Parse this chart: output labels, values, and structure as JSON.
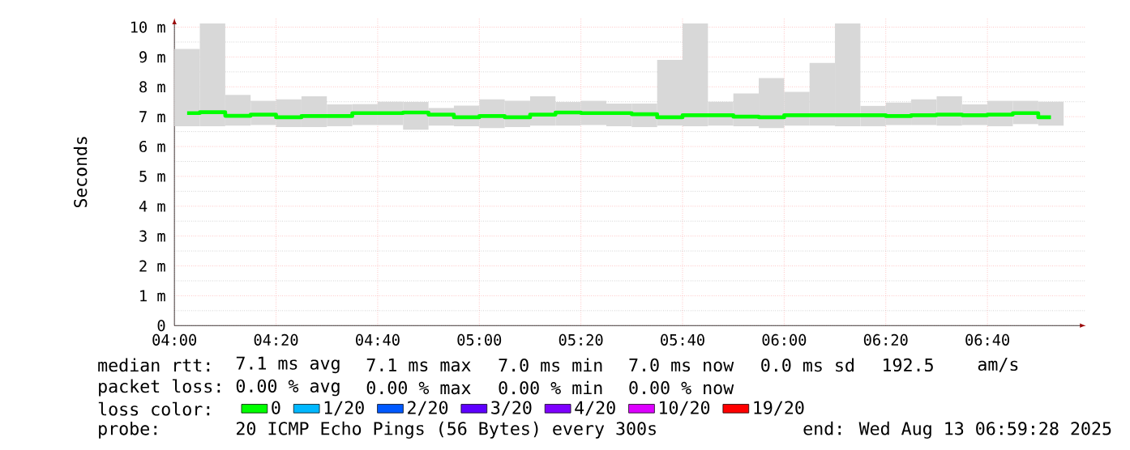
{
  "chart_data": {
    "type": "bar",
    "ylabel": "Seconds",
    "legend_title": "loss color:",
    "legend": "bottom",
    "grid": true,
    "xlim": [
      4,
      6.99
    ],
    "xticks": [
      {
        "value": 4,
        "label": "04:00"
      },
      {
        "value": 4.3333,
        "label": "04:20"
      },
      {
        "value": 4.6667,
        "label": "04:40"
      },
      {
        "value": 5,
        "label": "05:00"
      },
      {
        "value": 5.3333,
        "label": "05:20"
      },
      {
        "value": 5.6667,
        "label": "05:40"
      },
      {
        "value": 6,
        "label": "06:00"
      },
      {
        "value": 6.3333,
        "label": "06:20"
      },
      {
        "value": 6.6667,
        "label": "06:40"
      }
    ],
    "ylim": [
      0,
      10.3
    ],
    "yticks": [
      0,
      {
        "value": 1,
        "label": "1 m"
      },
      {
        "value": 2,
        "label": "2 m"
      },
      {
        "value": 3,
        "label": "3 m"
      },
      {
        "value": 4,
        "label": "4 m"
      },
      {
        "value": 5,
        "label": "5 m"
      },
      {
        "value": 6,
        "label": "6 m"
      },
      {
        "value": 7,
        "label": "7 m"
      },
      {
        "value": 8,
        "label": "8 m"
      },
      {
        "value": 9,
        "label": "9 m"
      },
      {
        "value": 10,
        "label": "10 m"
      }
    ],
    "x": [
      4.0417,
      4.125,
      4.2083,
      4.2917,
      4.375,
      4.4583,
      4.5417,
      4.625,
      4.7083,
      4.7917,
      4.875,
      4.9583,
      5.0417,
      5.125,
      5.2083,
      5.2917,
      5.375,
      5.4583,
      5.5417,
      5.625,
      5.7083,
      5.7917,
      5.875,
      5.9583,
      6.0417,
      6.125,
      6.2083,
      6.2917,
      6.375,
      6.4583,
      6.5417,
      6.625,
      6.7083,
      6.7917,
      6.875
    ],
    "series": [
      {
        "color": "#d8d8d8",
        "base": [
          6.68,
          6.68,
          6.7,
          6.72,
          6.65,
          6.65,
          6.68,
          6.72,
          6.72,
          6.56,
          6.7,
          6.68,
          6.62,
          6.65,
          6.7,
          6.7,
          6.72,
          6.68,
          6.65,
          6.7,
          6.68,
          6.7,
          6.68,
          6.62,
          6.7,
          6.7,
          6.68,
          6.68,
          6.72,
          6.72,
          6.7,
          6.72,
          6.68,
          6.75,
          6.7
        ],
        "values": [
          2.59,
          3.44,
          1.03,
          0.81,
          0.93,
          1.03,
          0.73,
          0.7,
          0.78,
          0.93,
          0.59,
          0.69,
          0.96,
          0.88,
          0.98,
          0.79,
          0.81,
          0.76,
          0.79,
          2.2,
          3.44,
          0.8,
          1.1,
          1.67,
          1.13,
          2.1,
          3.44,
          0.68,
          0.75,
          0.86,
          0.98,
          0.69,
          0.85,
          0.78,
          0.8
        ]
      },
      {
        "type": "step",
        "name": "0",
        "color": "#00ff00",
        "values": [
          7.12,
          7.15,
          7.03,
          7.07,
          6.98,
          7.02,
          7.02,
          7.12,
          7.12,
          7.14,
          7.07,
          6.98,
          7.02,
          6.98,
          7.07,
          7.14,
          7.12,
          7.12,
          7.08,
          6.98,
          7.05,
          7.05,
          7.0,
          6.98,
          7.05,
          7.05,
          7.05,
          7.05,
          7.02,
          7.05,
          7.07,
          7.05,
          7.07,
          7.12,
          6.98
        ]
      },
      {
        "type": "step",
        "name": "1/20",
        "color": "#00b8ff",
        "values": [
          null,
          null,
          null,
          null,
          null,
          null,
          null,
          null,
          null,
          null,
          null,
          null,
          null,
          null,
          null,
          null,
          null,
          null,
          null,
          null,
          null,
          null,
          null,
          null,
          null,
          null,
          null,
          null,
          null,
          null,
          null,
          null,
          null,
          null,
          null
        ]
      },
      {
        "type": "step",
        "name": "2/20",
        "color": "#0059ff",
        "values": [
          null,
          null,
          null,
          null,
          null,
          null,
          null,
          null,
          null,
          null,
          null,
          null,
          null,
          null,
          null,
          null,
          null,
          null,
          null,
          null,
          null,
          null,
          null,
          null,
          null,
          null,
          null,
          null,
          null,
          null,
          null,
          null,
          null,
          null,
          null
        ]
      },
      {
        "type": "step",
        "name": "3/20",
        "color": "#5e00ff",
        "values": [
          null,
          null,
          null,
          null,
          null,
          null,
          null,
          null,
          null,
          null,
          null,
          null,
          null,
          null,
          null,
          null,
          null,
          null,
          null,
          null,
          null,
          null,
          null,
          null,
          null,
          null,
          null,
          null,
          null,
          null,
          null,
          null,
          null,
          null,
          null
        ]
      },
      {
        "type": "step",
        "name": "4/20",
        "color": "#7e00ff",
        "values": [
          null,
          null,
          null,
          null,
          null,
          null,
          null,
          null,
          null,
          null,
          null,
          null,
          null,
          null,
          null,
          null,
          null,
          null,
          null,
          null,
          null,
          null,
          null,
          null,
          null,
          null,
          null,
          null,
          null,
          null,
          null,
          null,
          null,
          null,
          null
        ]
      },
      {
        "type": "step",
        "name": "10/20",
        "color": "#dd00ff",
        "values": [
          null,
          null,
          null,
          null,
          null,
          null,
          null,
          null,
          null,
          null,
          null,
          null,
          null,
          null,
          null,
          null,
          null,
          null,
          null,
          null,
          null,
          null,
          null,
          null,
          null,
          null,
          null,
          null,
          null,
          null,
          null,
          null,
          null,
          null,
          null
        ]
      },
      {
        "type": "step",
        "name": "19/20",
        "color": "#ff0000",
        "values": [
          null,
          null,
          null,
          null,
          null,
          null,
          null,
          null,
          null,
          null,
          null,
          null,
          null,
          null,
          null,
          null,
          null,
          null,
          null,
          null,
          null,
          null,
          null,
          null,
          null,
          null,
          null,
          null,
          null,
          null,
          null,
          null,
          null,
          null,
          null
        ]
      }
    ],
    "annotations": [
      "median rtt:",
      "7.1 ms avg",
      "7.1 ms max",
      "7.0 ms min",
      "7.0 ms now",
      "0.0 ms sd",
      "192.5",
      "am/s",
      "packet loss:",
      "0.00 % avg",
      "0.00 % max",
      "0.00 % min",
      "0.00 % now",
      "probe:",
      "20 ICMP Echo Pings (56 Bytes) every 300s",
      "end: Wed Aug 13 06:59:28 2025"
    ]
  }
}
